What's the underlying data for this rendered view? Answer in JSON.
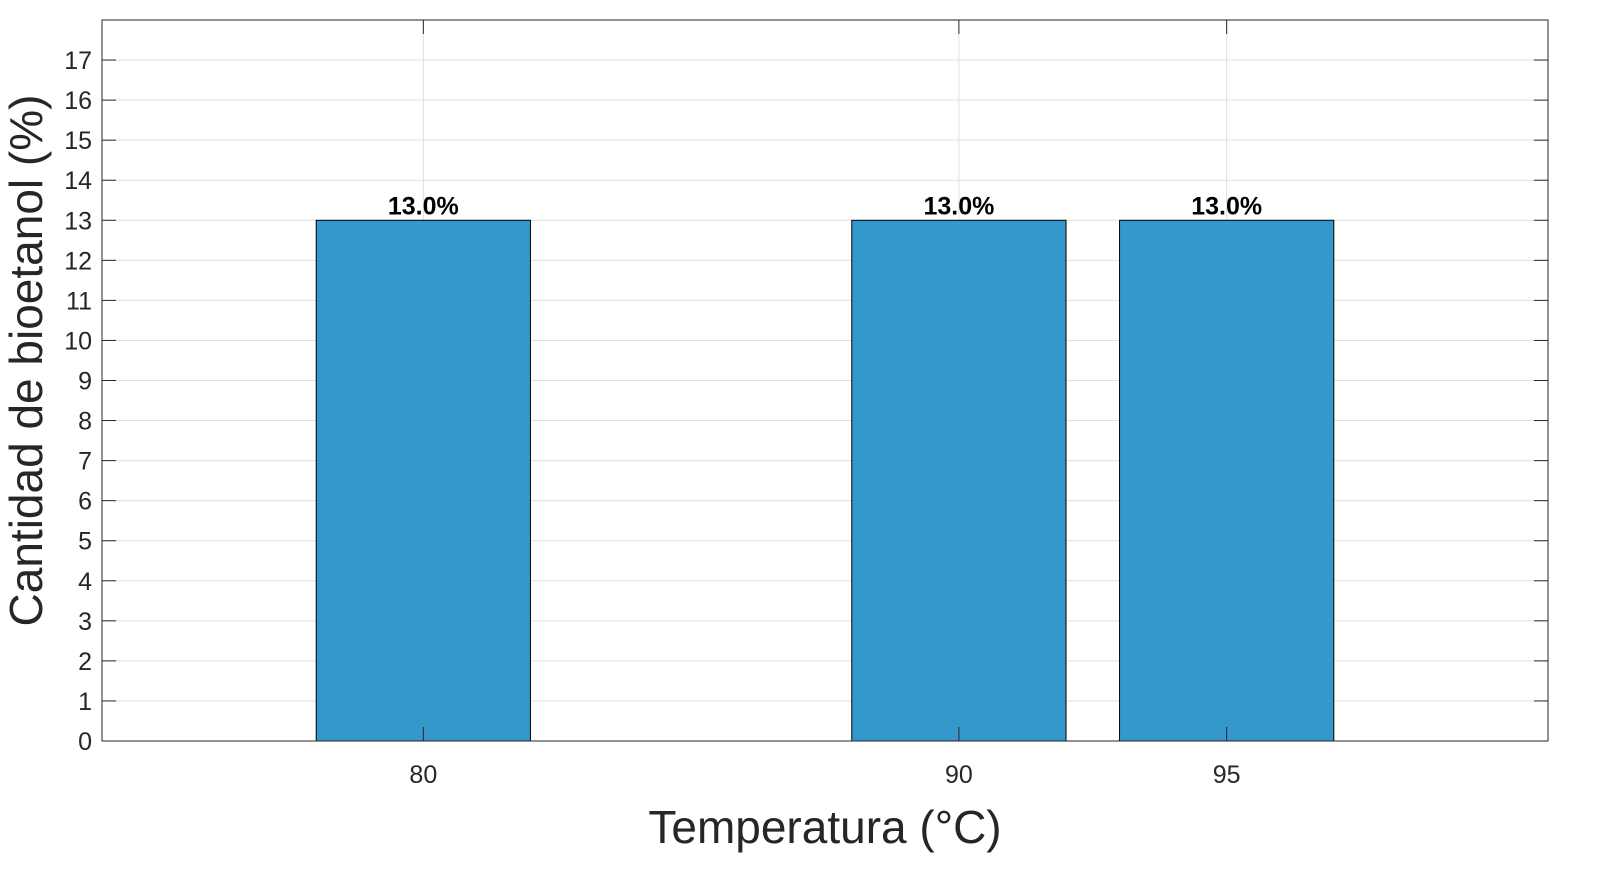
{
  "chart_data": {
    "type": "bar",
    "x": [
      80,
      90,
      95
    ],
    "x_tick_labels": [
      "80",
      "90",
      "95"
    ],
    "values": [
      13.0,
      13.0,
      13.0
    ],
    "data_labels": [
      "13.0%",
      "13.0%",
      "13.0%"
    ],
    "xlabel": "Temperatura (°C)",
    "ylabel": "Cantidad de bioetanol (%)",
    "xlim": [
      74,
      101
    ],
    "ylim": [
      0,
      18
    ],
    "y_ticks": [
      0,
      1,
      2,
      3,
      4,
      5,
      6,
      7,
      8,
      9,
      10,
      11,
      12,
      13,
      14,
      15,
      16,
      17
    ],
    "bar_width": 4,
    "grid": true,
    "bar_color": "#3498cd",
    "grid_color": "#e0e0e0",
    "axis_color": "#262626"
  }
}
